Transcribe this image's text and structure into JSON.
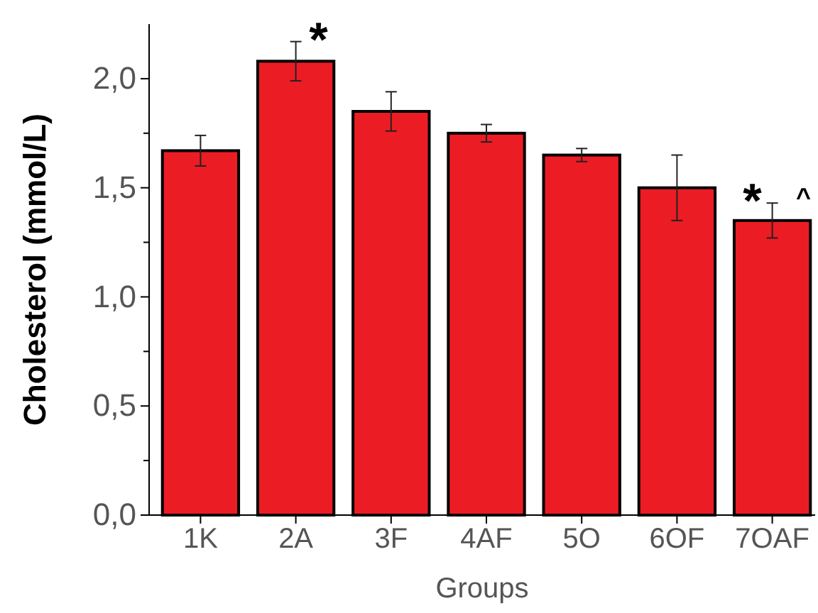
{
  "chart_data": {
    "type": "bar",
    "xlabel": "Groups",
    "ylabel": "Cholesterol (mmol/L)",
    "categories": [
      "1K",
      "2A",
      "3F",
      "4AF",
      "5O",
      "6OF",
      "7OAF"
    ],
    "values": [
      1.67,
      2.08,
      1.85,
      1.75,
      1.65,
      1.5,
      1.35
    ],
    "errors": [
      0.07,
      0.09,
      0.09,
      0.04,
      0.03,
      0.15,
      0.08
    ],
    "color": "#ec1c24",
    "ylim": [
      0,
      2.25
    ],
    "yticks": [
      {
        "value": 0,
        "label": "0,0"
      },
      {
        "value": 0.25,
        "label": null
      },
      {
        "value": 0.5,
        "label": "0,5"
      },
      {
        "value": 0.75,
        "label": null
      },
      {
        "value": 1,
        "label": "1,0"
      },
      {
        "value": 1.25,
        "label": null
      },
      {
        "value": 1.5,
        "label": "1,5"
      },
      {
        "value": 1.75,
        "label": null
      },
      {
        "value": 2,
        "label": "2,0"
      }
    ],
    "annotations": [
      {
        "text": "*",
        "x": "2A",
        "y": 2.17
      },
      {
        "text": "*",
        "x": "7OAF",
        "y": 1.43
      },
      {
        "text": "^",
        "x": "7OAF",
        "y": 1.43
      }
    ],
    "grid": false
  }
}
